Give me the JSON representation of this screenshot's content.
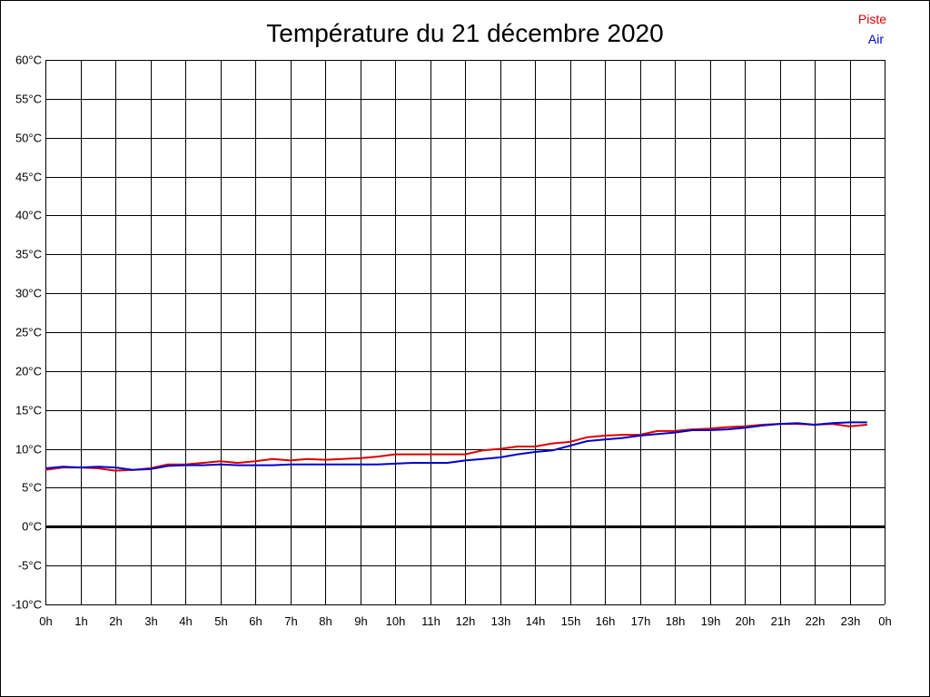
{
  "chart_data": {
    "type": "line",
    "title": "Température du 21 décembre 2020",
    "xlabel": "",
    "ylabel": "",
    "xlim": [
      0,
      24
    ],
    "ylim": [
      -10,
      60
    ],
    "grid": true,
    "legend_position": "top-right",
    "x_ticks": [
      "0h",
      "1h",
      "2h",
      "3h",
      "4h",
      "5h",
      "6h",
      "7h",
      "8h",
      "9h",
      "10h",
      "11h",
      "12h",
      "13h",
      "14h",
      "15h",
      "16h",
      "17h",
      "18h",
      "19h",
      "20h",
      "21h",
      "22h",
      "23h",
      "0h"
    ],
    "y_ticks": [
      "60°C",
      "55°C",
      "50°C",
      "45°C",
      "40°C",
      "35°C",
      "30°C",
      "25°C",
      "20°C",
      "15°C",
      "10°C",
      "5°C",
      "0°C",
      "-5°C",
      "-10°C"
    ],
    "y_tick_values": [
      60,
      55,
      50,
      45,
      40,
      35,
      30,
      25,
      20,
      15,
      10,
      5,
      0,
      -5,
      -10
    ],
    "zero_line": 0,
    "series": [
      {
        "name": "Piste",
        "color": "#dd0000",
        "x": [
          0,
          0.5,
          1,
          1.5,
          2,
          2.5,
          3,
          3.5,
          4,
          4.5,
          5,
          5.5,
          6,
          6.5,
          7,
          7.5,
          8,
          8.5,
          9,
          9.5,
          10,
          10.5,
          11,
          11.5,
          12,
          12.5,
          13,
          13.5,
          14,
          14.5,
          15,
          15.5,
          16,
          16.5,
          17,
          17.5,
          18,
          18.5,
          19,
          19.5,
          20,
          20.5,
          21,
          21.5,
          22,
          22.5,
          23,
          23.5
        ],
        "values": [
          7.3,
          7.6,
          7.6,
          7.5,
          7.2,
          7.3,
          7.5,
          8.0,
          8.0,
          8.2,
          8.4,
          8.2,
          8.4,
          8.7,
          8.5,
          8.7,
          8.6,
          8.7,
          8.8,
          9.0,
          9.3,
          9.3,
          9.3,
          9.3,
          9.3,
          9.8,
          10.0,
          10.3,
          10.3,
          10.7,
          10.9,
          11.5,
          11.7,
          11.8,
          11.8,
          12.3,
          12.3,
          12.5,
          12.6,
          12.8,
          12.9,
          13.1,
          13.2,
          13.2,
          13.1,
          13.2,
          12.9,
          13.1
        ]
      },
      {
        "name": "Air",
        "color": "#0000cc",
        "x": [
          0,
          0.5,
          1,
          1.5,
          2,
          2.5,
          3,
          3.5,
          4,
          4.5,
          5,
          5.5,
          6,
          6.5,
          7,
          7.5,
          8,
          8.5,
          9,
          9.5,
          10,
          10.5,
          11,
          11.5,
          12,
          12.5,
          13,
          13.5,
          14,
          14.5,
          15,
          15.5,
          16,
          16.5,
          17,
          17.5,
          18,
          18.5,
          19,
          19.5,
          20,
          20.5,
          21,
          21.5,
          22,
          22.5,
          23,
          23.5
        ],
        "values": [
          7.5,
          7.7,
          7.6,
          7.7,
          7.6,
          7.3,
          7.4,
          7.8,
          7.9,
          7.9,
          8.0,
          7.9,
          7.9,
          7.9,
          8.0,
          8.0,
          8.0,
          8.0,
          8.0,
          8.0,
          8.1,
          8.2,
          8.2,
          8.2,
          8.5,
          8.7,
          8.9,
          9.3,
          9.6,
          9.8,
          10.4,
          11.0,
          11.2,
          11.4,
          11.7,
          11.9,
          12.1,
          12.4,
          12.4,
          12.5,
          12.7,
          13.0,
          13.2,
          13.3,
          13.1,
          13.3,
          13.4,
          13.4
        ]
      }
    ]
  }
}
